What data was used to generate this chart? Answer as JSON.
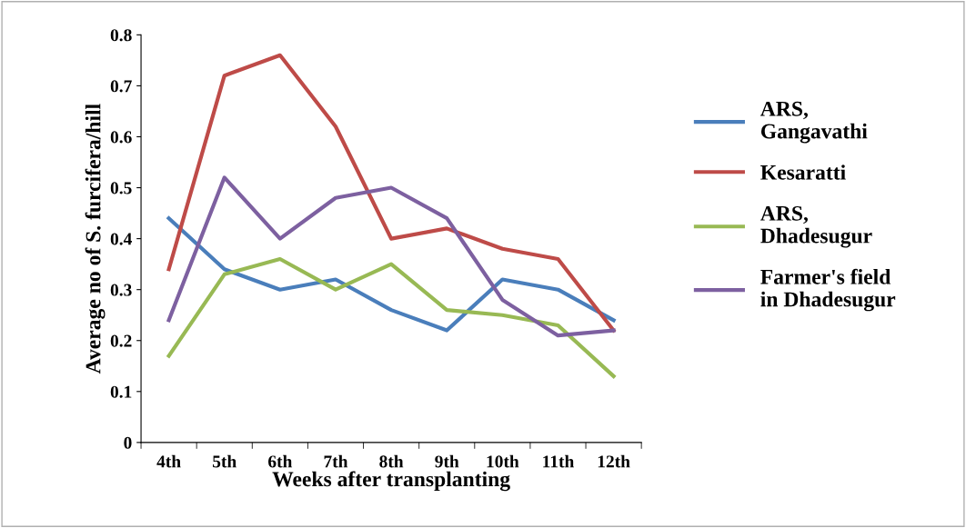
{
  "chart_data": {
    "type": "line",
    "xlabel": "Weeks after transplanting",
    "ylabel": "Average no of S. furcifera/hill",
    "categories": [
      "4th",
      "5th",
      "6th",
      "7th",
      "8th",
      "9th",
      "10th",
      "11th",
      "12th"
    ],
    "series": [
      {
        "name": "ARS,\nGangavathi",
        "color": "#4a7ebb",
        "values": [
          0.44,
          0.34,
          0.3,
          0.32,
          0.26,
          0.22,
          0.32,
          0.3,
          0.24
        ]
      },
      {
        "name": "Kesaratti",
        "color": "#be4b48",
        "values": [
          0.34,
          0.72,
          0.76,
          0.62,
          0.4,
          0.42,
          0.38,
          0.36,
          0.22
        ]
      },
      {
        "name": "ARS,\nDhadesugur",
        "color": "#98b954",
        "values": [
          0.17,
          0.33,
          0.36,
          0.3,
          0.35,
          0.26,
          0.25,
          0.23,
          0.13
        ]
      },
      {
        "name": "Farmer's field\nin Dhadesugur",
        "color": "#7d60a0",
        "values": [
          0.24,
          0.52,
          0.4,
          0.48,
          0.5,
          0.44,
          0.28,
          0.21,
          0.22
        ]
      }
    ],
    "ylim": [
      0,
      0.8
    ],
    "yticks": [
      0,
      0.1,
      0.2,
      0.3,
      0.4,
      0.5,
      0.6,
      0.7,
      0.8
    ],
    "grid": false,
    "legend": "right",
    "marker": "none",
    "line_style": "solid"
  }
}
